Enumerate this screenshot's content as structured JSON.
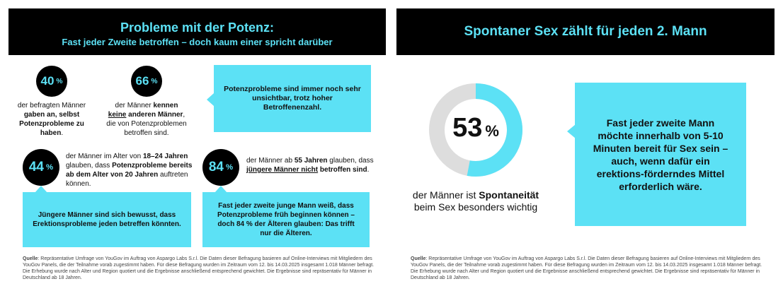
{
  "left": {
    "title": "Probleme mit der Potenz:",
    "subtitle": "Fast jeder Zweite betroffen – doch kaum einer spricht darüber",
    "stats": [
      {
        "value": 40,
        "unit": "%",
        "caption": [
          {
            "text": "der befragten Männer "
          },
          {
            "text": "gaben an, selbst Potenzprobleme zu haben",
            "bold": true
          },
          {
            "text": "."
          }
        ]
      },
      {
        "value": 66,
        "unit": "%",
        "caption": [
          {
            "text": "der Männer "
          },
          {
            "text": "kennen ",
            "bold": true
          },
          {
            "text": "keine",
            "bold": true,
            "underline": true
          },
          {
            "text": " anderen Männer",
            "bold": true
          },
          {
            "text": ", die von Potenzproblemen betroffen sind."
          }
        ]
      },
      {
        "value": 44,
        "unit": "%",
        "caption": [
          {
            "text": "der Männer im Alter von "
          },
          {
            "text": "18–24 Jahren",
            "bold": true
          },
          {
            "text": " glauben, dass "
          },
          {
            "text": "Potenzprobleme bereits ab dem Alter von 20 Jahren",
            "bold": true
          },
          {
            "text": " auftreten können."
          }
        ]
      },
      {
        "value": 84,
        "unit": "%",
        "caption": [
          {
            "text": "der Männer ab "
          },
          {
            "text": "55 Jahren",
            "bold": true
          },
          {
            "text": " glauben, dass "
          },
          {
            "text": "jüngere Männer nicht",
            "bold": true,
            "underline": true
          },
          {
            "text": " betroffen sind",
            "bold": true
          },
          {
            "text": "."
          }
        ]
      }
    ],
    "boxes": [
      "Potenzprobleme sind immer noch sehr unsichtbar, trotz hoher Betroffenenzahl.",
      "Jüngere Männer sind sich bewusst, dass Erektionsprobleme jeden betreffen könnten.",
      "Fast jeder zweite junge Mann weiß, dass Potenzprobleme früh beginnen können – doch 84 % der Älteren glauben: Das trifft nur die Älteren."
    ],
    "source": [
      {
        "text": "Quelle",
        "bold": true
      },
      {
        "text": ": Repräsentative Umfrage von YouGov im Auftrag von Aspargo Labs S.r.l. Die Daten dieser Befragung basieren auf Online-Interviews mit Mitgliedern des YouGov Panels, die der Teilnahme vorab zugestimmt haben. Für diese Befragung wurden im Zeitraum vom 12. bis 14.03.2025 insgesamt 1.018 Männer befragt. Die Erhebung wurde nach Alter und Region quotiert und die Ergebnisse anschließend entsprechend gewichtet. Die Ergebnisse sind repräsentativ für Männer in Deutschland ab 18 Jahren."
      }
    ]
  },
  "right": {
    "title": "Spontaner Sex zählt für jeden 2. Mann",
    "donut": {
      "value": 53,
      "unit": "%",
      "max": 100,
      "color": "#5ce1f5",
      "track_color": "#dddddd",
      "caption": [
        {
          "text": "der Männer ist "
        },
        {
          "text": "Spontaneität",
          "bold": true
        },
        {
          "text": " beim Sex besonders wichtig"
        }
      ]
    },
    "box": "Fast jeder zweite Mann möchte innerhalb von 5-10 Minuten bereit für Sex sein – auch, wenn dafür ein erektions-förderndes Mittel erforderlich wäre.",
    "source": [
      {
        "text": "Quelle",
        "bold": true
      },
      {
        "text": ": Repräsentative Umfrage von YouGov im Auftrag von Aspargo Labs S.r.l. Die Daten dieser Befragung basieren auf Online-Interviews mit Mitgliedern des YouGov Panels, die der Teilnahme vorab zugestimmt haben. Für diese Befragung wurden im Zeitraum vom 12. bis 14.03.2025 insgesamt 1.018 Männer befragt. Die Erhebung wurde nach Alter und Region quotiert und die Ergebnisse anschließend entsprechend gewichtet. Die Ergebnisse sind repräsentativ für Männer in Deutschland ab 18 Jahren."
      }
    ]
  }
}
